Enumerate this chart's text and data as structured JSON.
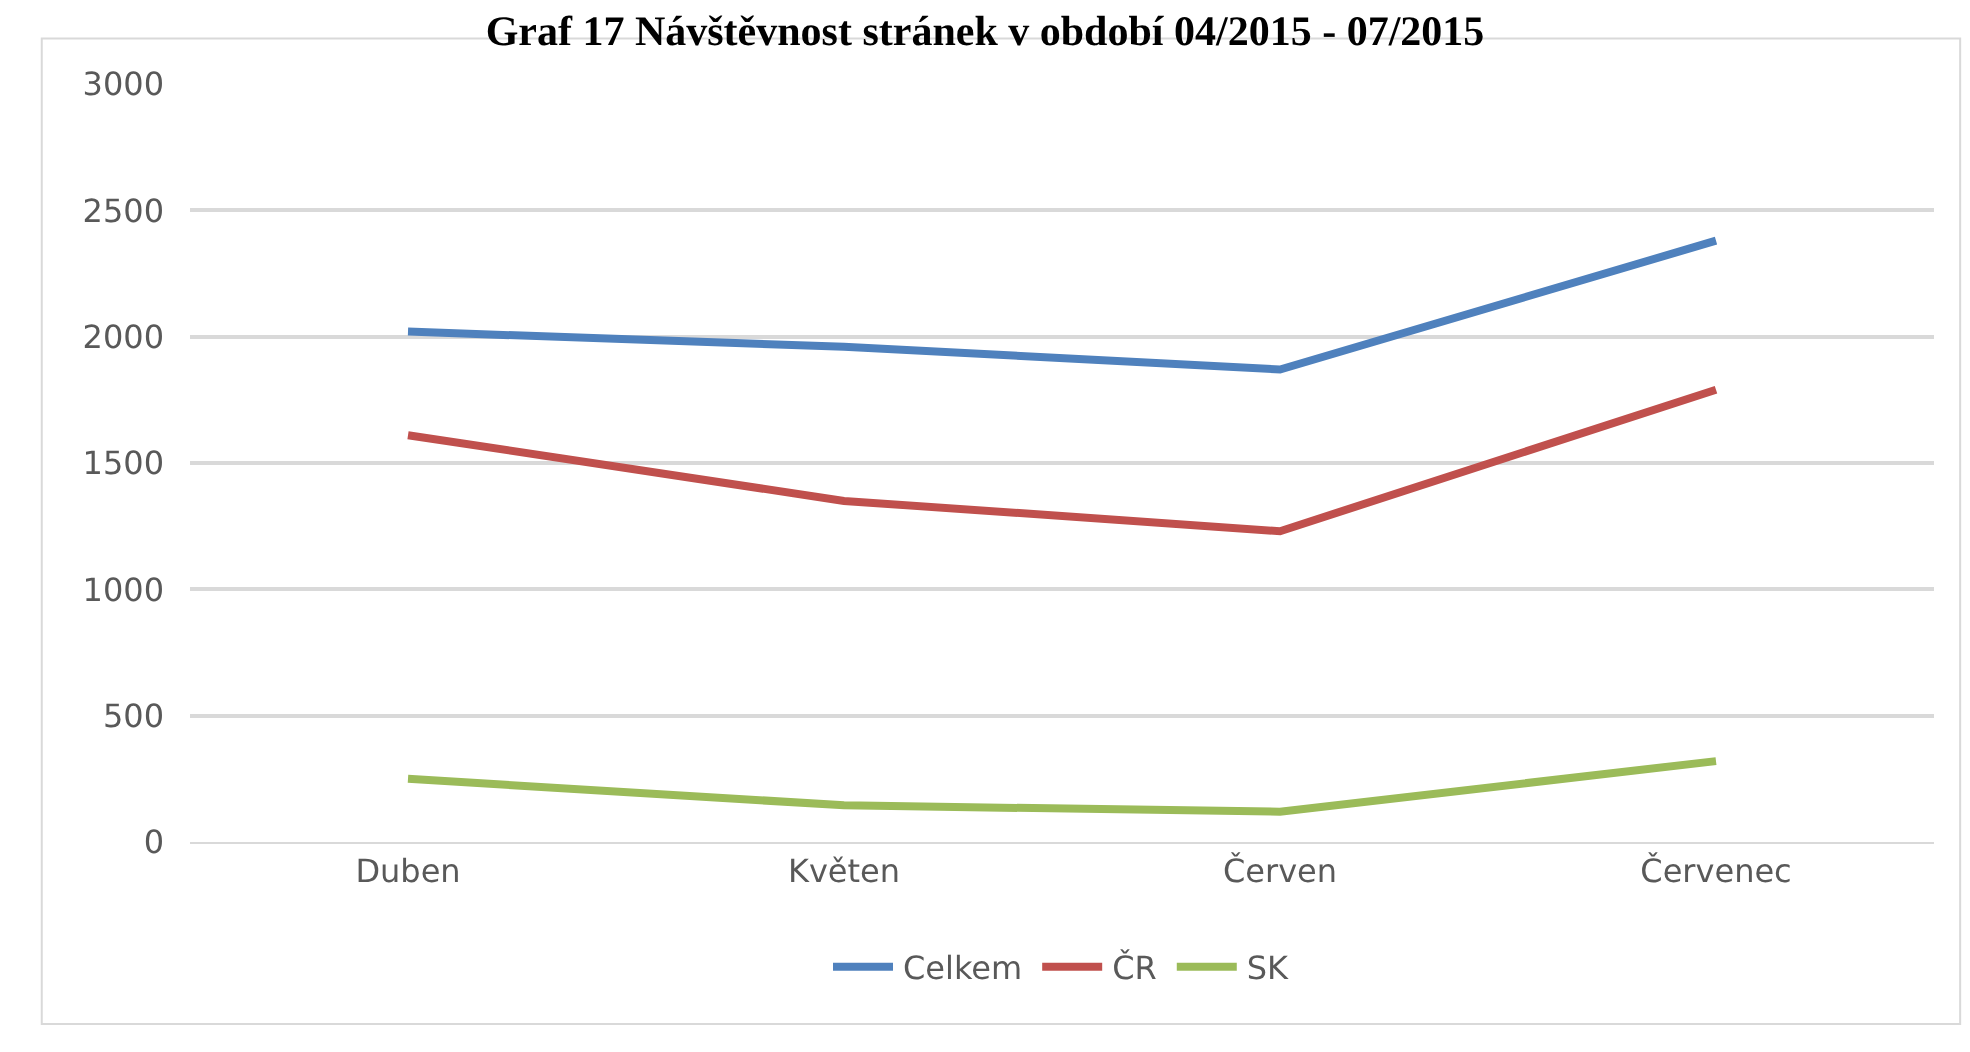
{
  "chart_data": {
    "type": "line",
    "title": "Graf 17 Návštěvnost stránek v období 04/2015 - 07/2015",
    "categories": [
      "Duben",
      "Květen",
      "Červen",
      "Červenec"
    ],
    "series": [
      {
        "name": "Celkem",
        "color": "#4f81bd",
        "values": [
          2020,
          1960,
          1870,
          2380
        ]
      },
      {
        "name": "ČR",
        "color": "#c0504d",
        "values": [
          1610,
          1350,
          1230,
          1790
        ]
      },
      {
        "name": "SK",
        "color": "#9bbb59",
        "values": [
          250,
          145,
          120,
          320
        ]
      }
    ],
    "ylim": [
      0,
      3000
    ],
    "yticks": [
      0,
      500,
      1000,
      1500,
      2000,
      2500,
      3000
    ],
    "grid": "y",
    "legend": "bottom",
    "marker": "none",
    "line_style": "solid"
  }
}
